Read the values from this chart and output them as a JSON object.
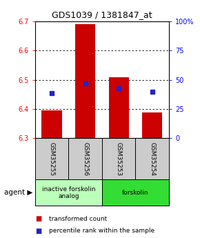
{
  "title": "GDS1039 / 1381847_at",
  "samples": [
    "GSM35255",
    "GSM35256",
    "GSM35253",
    "GSM35254"
  ],
  "bar_bottoms": [
    6.3,
    6.3,
    6.3,
    6.3
  ],
  "bar_tops": [
    6.395,
    6.69,
    6.508,
    6.388
  ],
  "percentile_values": [
    6.455,
    6.487,
    6.471,
    6.458
  ],
  "ylim": [
    6.3,
    6.7
  ],
  "yticks_left": [
    6.3,
    6.4,
    6.5,
    6.6,
    6.7
  ],
  "yticks_right": [
    0,
    25,
    50,
    75,
    100
  ],
  "bar_color": "#cc0000",
  "percentile_color": "#2222cc",
  "agent_groups": [
    {
      "label": "inactive forskolin\nanalog",
      "cols": [
        0,
        1
      ],
      "color": "#bbffbb"
    },
    {
      "label": "forskolin",
      "cols": [
        2,
        3
      ],
      "color": "#33dd33"
    }
  ],
  "legend_red_label": "transformed count",
  "legend_blue_label": "percentile rank within the sample"
}
